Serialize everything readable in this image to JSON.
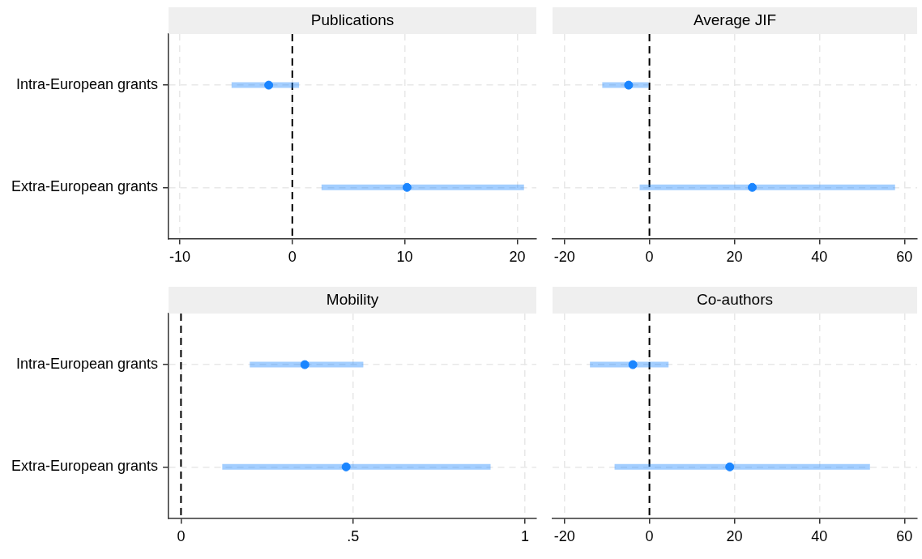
{
  "chart_data": [
    {
      "type": "scatter",
      "title": "Publications",
      "orientation": "horizontal",
      "categories": [
        "Intra-European grants",
        "Extra-European grants"
      ],
      "values": [
        -2.1,
        10.2
      ],
      "errors": [
        [
          -5.4,
          0.6
        ],
        [
          2.6,
          20.6
        ]
      ],
      "color": "#1a85ff",
      "marker": "circle",
      "xlim": [
        -11,
        21.7
      ],
      "xticks": [
        -10,
        0,
        10,
        20
      ],
      "ref_lines": [
        {
          "axis": "x",
          "value": 0,
          "color": "#000000",
          "line_style": "dashed"
        }
      ],
      "grid": true
    },
    {
      "type": "scatter",
      "title": "Average JIF",
      "orientation": "horizontal",
      "categories": [
        null,
        null
      ],
      "values": [
        -4.9,
        24.2
      ],
      "errors": [
        [
          -11.1,
          -0.2
        ],
        [
          -2.3,
          57.8
        ]
      ],
      "color": "#1a85ff",
      "marker": "circle",
      "xlim": [
        -22.8,
        63
      ],
      "xticks": [
        -20,
        0,
        20,
        40,
        60
      ],
      "ref_lines": [
        {
          "axis": "x",
          "value": 0,
          "color": "#000000",
          "line_style": "dashed"
        }
      ],
      "grid": true,
      "tick_labels": "x"
    },
    {
      "type": "scatter",
      "title": "Mobility",
      "orientation": "horizontal",
      "categories": [
        "Intra-European grants",
        "Extra-European grants"
      ],
      "values": [
        0.36,
        0.48
      ],
      "errors": [
        [
          0.2,
          0.53
        ],
        [
          0.12,
          0.9
        ]
      ],
      "color": "#1a85ff",
      "marker": "circle",
      "xlim": [
        -0.036,
        1.033
      ],
      "xticks": [
        0,
        {
          "value": 0.5,
          "label": ".5"
        },
        1
      ],
      "ref_lines": [
        {
          "axis": "x",
          "value": 0,
          "color": "#000000",
          "line_style": "dashed"
        }
      ],
      "grid": true
    },
    {
      "type": "scatter",
      "title": "Co-authors",
      "orientation": "horizontal",
      "categories": [
        null,
        null
      ],
      "values": [
        -3.9,
        18.9
      ],
      "errors": [
        [
          -14,
          4.5
        ],
        [
          -8.2,
          51.9
        ]
      ],
      "color": "#1a85ff",
      "marker": "circle",
      "xlim": [
        -22.8,
        63
      ],
      "xticks": [
        -20,
        0,
        20,
        40,
        60
      ],
      "ref_lines": [
        {
          "axis": "x",
          "value": 0,
          "color": "#000000",
          "line_style": "dashed"
        }
      ],
      "grid": true,
      "tick_labels": "x"
    }
  ]
}
